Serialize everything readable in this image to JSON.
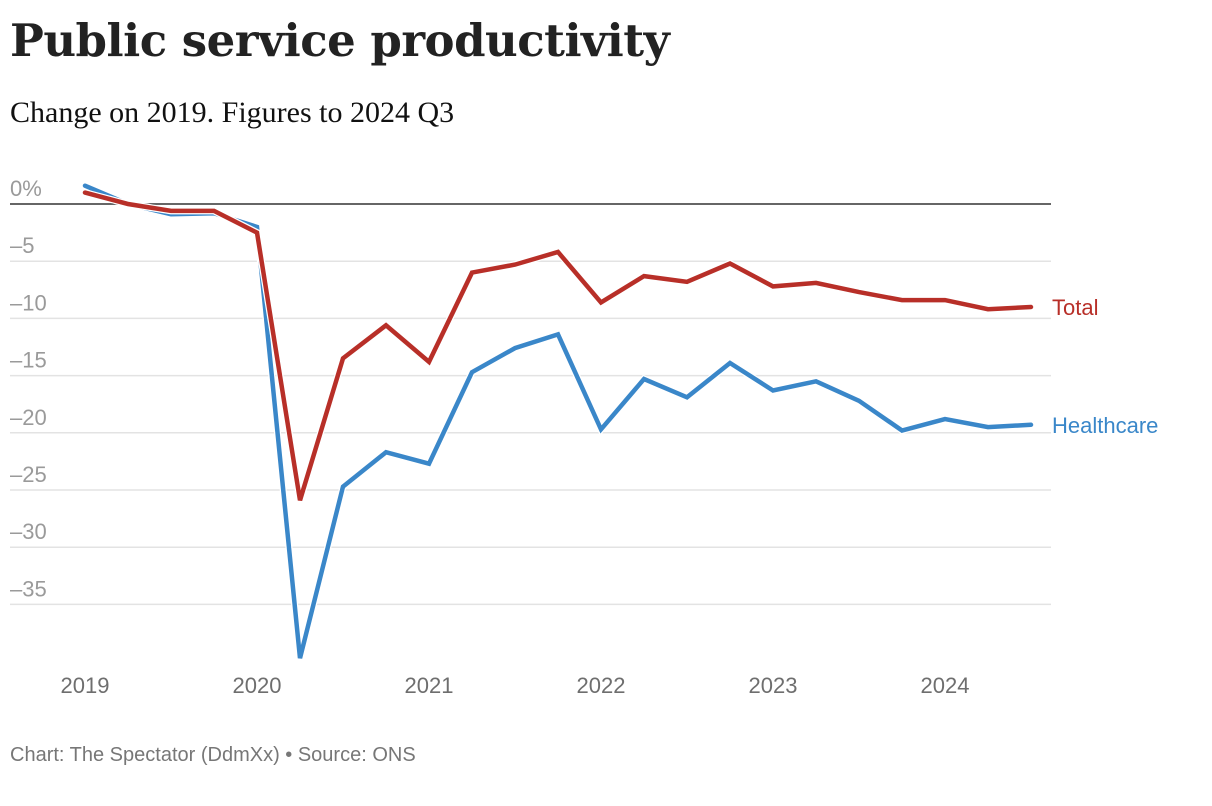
{
  "header": {
    "title": "Public service productivity",
    "subtitle": "Change on 2019. Figures to 2024 Q3"
  },
  "footer": {
    "credit": "Chart: The Spectator (DdmXx) • Source: ONS"
  },
  "chart_data": {
    "type": "line",
    "title": "Public service productivity",
    "subtitle": "Change on 2019. Figures to 2024 Q3",
    "xlabel": "",
    "ylabel": "",
    "ylim": [
      -40,
      2
    ],
    "grid": true,
    "legend": "inline-right",
    "y_ticks": [
      0,
      -5,
      -10,
      -15,
      -20,
      -25,
      -30,
      -35
    ],
    "y_tick_labels": [
      "0%",
      "–5",
      "–10",
      "–15",
      "–20",
      "–25",
      "–30",
      "–35"
    ],
    "x_ticks": [
      "2019",
      "2020",
      "2021",
      "2022",
      "2023",
      "2024"
    ],
    "x": [
      "2019 Q1",
      "2019 Q2",
      "2019 Q3",
      "2019 Q4",
      "2020 Q1",
      "2020 Q2",
      "2020 Q3",
      "2020 Q4",
      "2021 Q1",
      "2021 Q2",
      "2021 Q3",
      "2021 Q4",
      "2022 Q1",
      "2022 Q2",
      "2022 Q3",
      "2022 Q4",
      "2023 Q1",
      "2023 Q2",
      "2023 Q3",
      "2023 Q4",
      "2024 Q1",
      "2024 Q2",
      "2024 Q3"
    ],
    "series": [
      {
        "name": "Healthcare",
        "color": "#3a87c9",
        "values": [
          1.6,
          0.0,
          -0.9,
          -0.8,
          -2.0,
          -39.7,
          -24.7,
          -21.7,
          -22.7,
          -14.7,
          -12.6,
          -11.4,
          -19.7,
          -15.3,
          -16.9,
          -13.9,
          -16.3,
          -15.5,
          -17.2,
          -19.8,
          -18.8,
          -19.5,
          -19.3
        ]
      },
      {
        "name": "Total",
        "color": "#b82f28",
        "values": [
          1.0,
          0.0,
          -0.6,
          -0.6,
          -2.5,
          -25.9,
          -13.5,
          -10.6,
          -13.8,
          -6.0,
          -5.3,
          -4.2,
          -8.6,
          -6.3,
          -6.8,
          -5.2,
          -7.2,
          -6.9,
          -7.7,
          -8.4,
          -8.4,
          -9.2,
          -9.0
        ]
      }
    ]
  }
}
